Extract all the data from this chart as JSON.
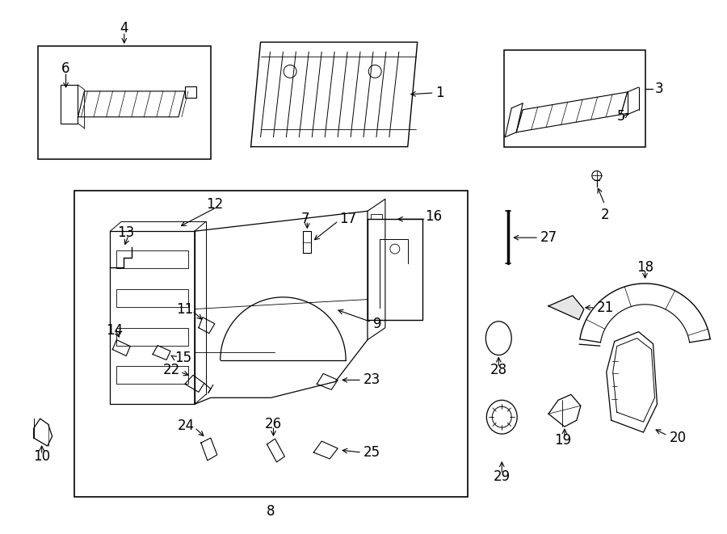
{
  "bg_color": "#ffffff",
  "line_color": "#000000",
  "figure_width": 9.0,
  "figure_height": 6.61,
  "dpi": 100
}
